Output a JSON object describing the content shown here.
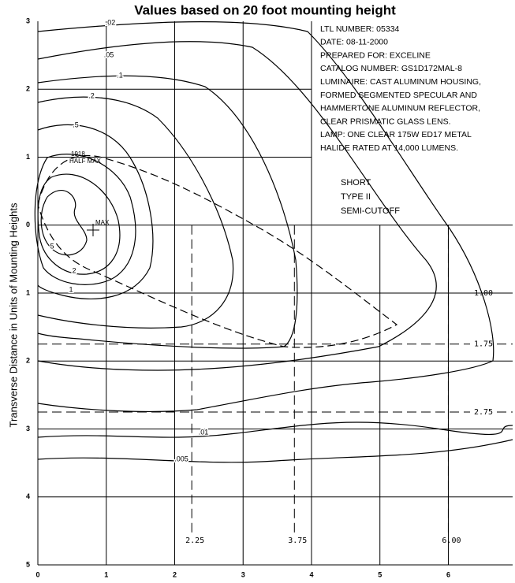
{
  "chart_data": {
    "type": "contour",
    "title": "Values based on 20 foot mounting height",
    "y_label": "Transverse Distance in Units of Mounting Heights",
    "xlim": [
      0,
      6.94
    ],
    "ylim": [
      -5,
      3
    ],
    "xticks": [
      0,
      1,
      2,
      3,
      4,
      5,
      6
    ],
    "yticks": [
      3,
      2,
      1,
      0,
      {
        "value": -1,
        "label": "1"
      },
      {
        "value": -2,
        "label": "2"
      },
      {
        "value": -3,
        "label": "3"
      },
      {
        "value": -4,
        "label": "4"
      },
      {
        "value": -5,
        "label": "5"
      }
    ],
    "notes": [
      "LTL NUMBER: 05334",
      "DATE: 08-11-2000",
      "PREPARED FOR: EXCELINE",
      "CATALOG NUMBER: GS1D172MAL-8",
      "LUMINAIRE: CAST ALUMINUM HOUSING,",
      "FORMED SEGMENTED SPECULAR AND",
      "HAMMERTONE ALUMINUM REFLECTOR,",
      "CLEAR PRISMATIC GLASS LENS.",
      "LAMP: ONE CLEAR 175W ED17 METAL",
      "HALIDE RATED AT 14,000 LUMENS."
    ],
    "classification": [
      "SHORT",
      "TYPE II",
      "SEMI-CUTOFF"
    ],
    "contours": [
      {
        "value": 0.005,
        "label": ".005"
      },
      {
        "value": 0.01,
        "label": ".01"
      },
      {
        "value": 0.02,
        "label": ".02"
      },
      {
        "value": 0.05,
        "label": ".05"
      },
      {
        "value": 0.1,
        "label": ".1"
      },
      {
        "value": 0.2,
        "label": ".2"
      },
      {
        "value": 0.5,
        "label": ".5"
      },
      {
        "value": 1,
        "label": "1"
      },
      {
        "value": 2,
        "label": "2"
      },
      {
        "value": 5,
        "label": "5"
      }
    ],
    "half_max": {
      "value": 1918,
      "label": "HALF MAX"
    },
    "max_label": "MAX",
    "h_reference_lines": [
      {
        "value": -1,
        "label": "1.00"
      },
      {
        "value": -1.75,
        "label": "1.75"
      },
      {
        "value": -2.75,
        "label": "2.75"
      }
    ],
    "v_reference_lines": [
      {
        "value": 2.25,
        "label": "2.25"
      },
      {
        "value": 3.75,
        "label": "3.75"
      },
      {
        "value": 6,
        "label": "6.00"
      }
    ]
  }
}
